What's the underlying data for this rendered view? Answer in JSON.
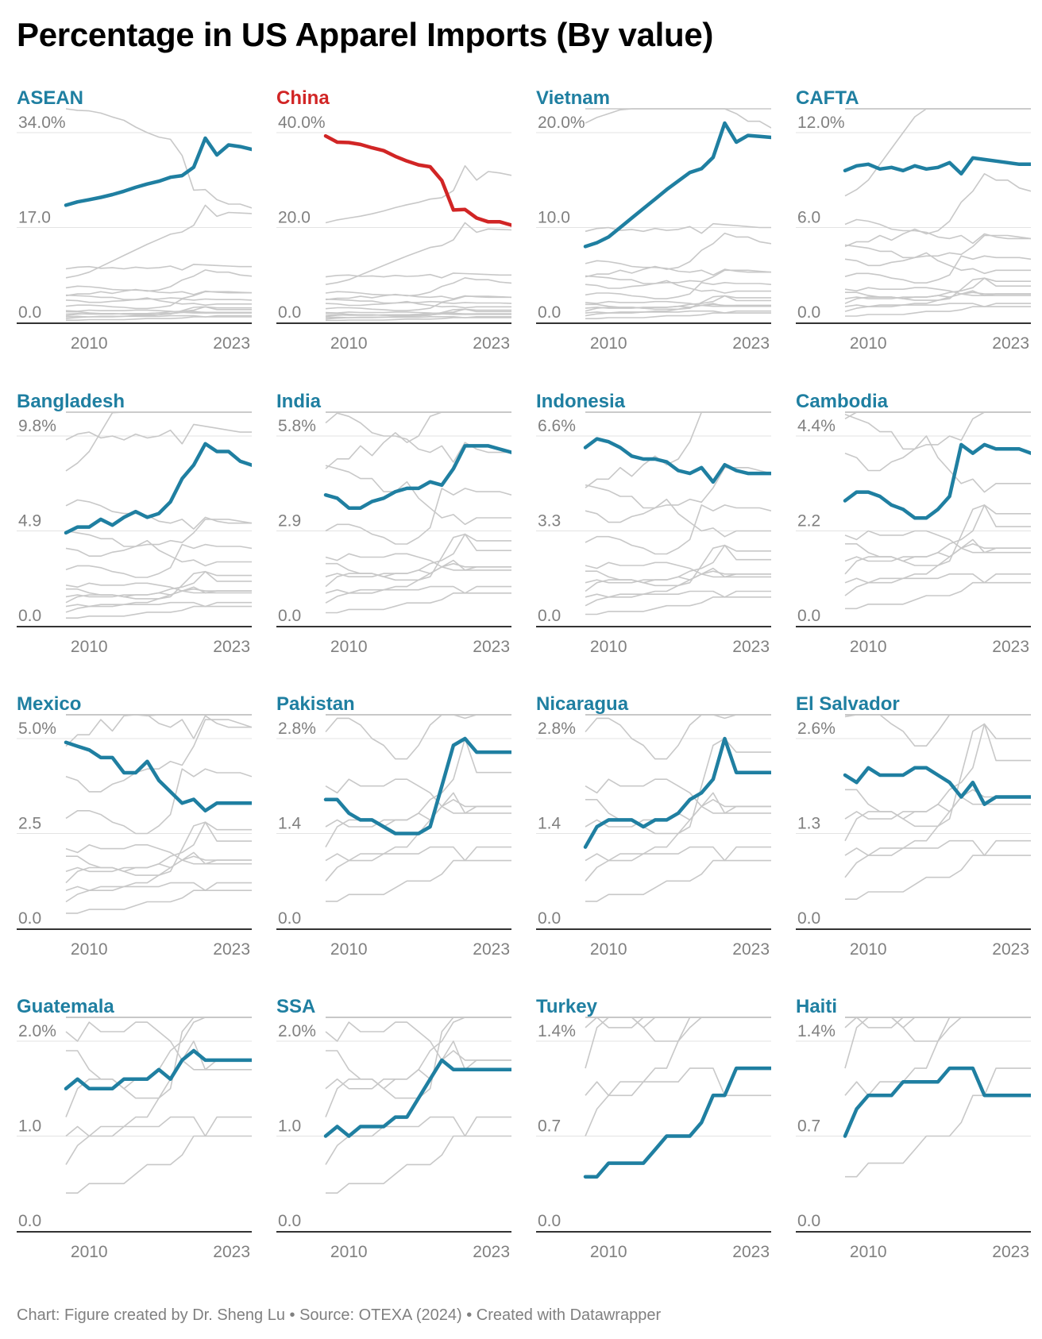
{
  "title": "Percentage in US Apparel Imports (By value)",
  "footer": {
    "chart": "Chart: Figure created by Dr. Sheng Lu",
    "sep1": " • ",
    "source": "Source: OTEXA (2024)",
    "sep2": " • ",
    "tool": "Created with Datawrapper"
  },
  "colors": {
    "highlight": "#1f7fa1",
    "china": "#d12525",
    "context": "#c8c8c8",
    "gridline": "#e3e3e3",
    "baseline": "#333333",
    "axis_text": "#808080"
  },
  "chart_data": [
    {
      "type": "line",
      "name": "ASEAN",
      "color": "#1f7fa1",
      "y_ticks": [
        "0.0",
        "17.0",
        "34.0%"
      ],
      "ylim": [
        0,
        34
      ],
      "x_ticks": [
        "2010",
        "2023"
      ],
      "x": [
        2008,
        2009,
        2010,
        2011,
        2012,
        2013,
        2014,
        2015,
        2016,
        2017,
        2018,
        2019,
        2020,
        2021,
        2022,
        2023,
        2024
      ],
      "values": [
        21.0,
        21.6,
        22.0,
        22.4,
        22.9,
        23.5,
        24.2,
        24.8,
        25.3,
        26.0,
        26.3,
        27.8,
        33.0,
        30.0,
        31.8,
        31.5,
        31.0
      ]
    },
    {
      "type": "line",
      "name": "China",
      "color": "#d12525",
      "y_ticks": [
        "0.0",
        "20.0",
        "40.0%"
      ],
      "ylim": [
        0,
        40
      ],
      "x_ticks": [
        "2010",
        "2023"
      ],
      "x": [
        2008,
        2009,
        2010,
        2011,
        2012,
        2013,
        2014,
        2015,
        2016,
        2017,
        2018,
        2019,
        2020,
        2021,
        2022,
        2023,
        2024
      ],
      "values": [
        39.3,
        38.0,
        37.9,
        37.5,
        36.8,
        36.2,
        35.0,
        34.0,
        33.2,
        32.8,
        29.9,
        23.7,
        23.8,
        22.0,
        21.2,
        21.2,
        20.5
      ]
    },
    {
      "type": "line",
      "name": "Vietnam",
      "color": "#1f7fa1",
      "y_ticks": [
        "0.0",
        "10.0",
        "20.0%"
      ],
      "ylim": [
        0,
        20
      ],
      "x_ticks": [
        "2010",
        "2023"
      ],
      "x": [
        2008,
        2009,
        2010,
        2011,
        2012,
        2013,
        2014,
        2015,
        2016,
        2017,
        2018,
        2019,
        2020,
        2021,
        2022,
        2023,
        2024
      ],
      "values": [
        8.0,
        8.4,
        9.0,
        10.0,
        11.0,
        12.0,
        13.0,
        14.0,
        14.9,
        15.8,
        16.2,
        17.4,
        21.0,
        19.0,
        19.7,
        19.6,
        19.5
      ]
    },
    {
      "type": "line",
      "name": "CAFTA",
      "color": "#1f7fa1",
      "y_ticks": [
        "0.0",
        "6.0",
        "12.0%"
      ],
      "ylim": [
        0,
        12
      ],
      "x_ticks": [
        "2010",
        "2023"
      ],
      "x": [
        2008,
        2009,
        2010,
        2011,
        2012,
        2013,
        2014,
        2015,
        2016,
        2017,
        2018,
        2019,
        2020,
        2021,
        2022,
        2023,
        2024
      ],
      "values": [
        9.6,
        9.9,
        10.0,
        9.7,
        9.8,
        9.6,
        9.9,
        9.7,
        9.8,
        10.1,
        9.4,
        10.4,
        10.3,
        10.2,
        10.1,
        10.0,
        10.0
      ]
    },
    {
      "type": "line",
      "name": "Bangladesh",
      "color": "#1f7fa1",
      "y_ticks": [
        "0.0",
        "4.9",
        "9.8%"
      ],
      "ylim": [
        0,
        9.8
      ],
      "x_ticks": [
        "2010",
        "2023"
      ],
      "x": [
        2008,
        2009,
        2010,
        2011,
        2012,
        2013,
        2014,
        2015,
        2016,
        2017,
        2018,
        2019,
        2020,
        2021,
        2022,
        2023,
        2024
      ],
      "values": [
        4.8,
        5.1,
        5.1,
        5.5,
        5.2,
        5.6,
        5.9,
        5.6,
        5.8,
        6.4,
        7.6,
        8.3,
        9.4,
        9.0,
        9.0,
        8.5,
        8.3
      ]
    },
    {
      "type": "line",
      "name": "India",
      "color": "#1f7fa1",
      "y_ticks": [
        "0.0",
        "2.9",
        "5.8%"
      ],
      "ylim": [
        0,
        5.8
      ],
      "x_ticks": [
        "2010",
        "2023"
      ],
      "x": [
        2008,
        2009,
        2010,
        2011,
        2012,
        2013,
        2014,
        2015,
        2016,
        2017,
        2018,
        2019,
        2020,
        2021,
        2022,
        2023,
        2024
      ],
      "values": [
        4.0,
        3.9,
        3.6,
        3.6,
        3.8,
        3.9,
        4.1,
        4.2,
        4.2,
        4.4,
        4.3,
        4.8,
        5.5,
        5.5,
        5.5,
        5.4,
        5.3
      ]
    },
    {
      "type": "line",
      "name": "Indonesia",
      "color": "#1f7fa1",
      "y_ticks": [
        "0.0",
        "3.3",
        "6.6%"
      ],
      "ylim": [
        0,
        6.6
      ],
      "x_ticks": [
        "2010",
        "2023"
      ],
      "x": [
        2008,
        2009,
        2010,
        2011,
        2012,
        2013,
        2014,
        2015,
        2016,
        2017,
        2018,
        2019,
        2020,
        2021,
        2022,
        2023,
        2024
      ],
      "values": [
        6.2,
        6.5,
        6.4,
        6.2,
        5.9,
        5.8,
        5.8,
        5.7,
        5.4,
        5.3,
        5.5,
        5.0,
        5.6,
        5.4,
        5.3,
        5.3,
        5.3
      ]
    },
    {
      "type": "line",
      "name": "Cambodia",
      "color": "#1f7fa1",
      "y_ticks": [
        "0.0",
        "2.2",
        "4.4%"
      ],
      "ylim": [
        0,
        4.4
      ],
      "x_ticks": [
        "2010",
        "2023"
      ],
      "x": [
        2008,
        2009,
        2010,
        2011,
        2012,
        2013,
        2014,
        2015,
        2016,
        2017,
        2018,
        2019,
        2020,
        2021,
        2022,
        2023,
        2024
      ],
      "values": [
        2.9,
        3.1,
        3.1,
        3.0,
        2.8,
        2.7,
        2.5,
        2.5,
        2.7,
        3.0,
        4.2,
        4.0,
        4.2,
        4.1,
        4.1,
        4.1,
        4.0
      ]
    },
    {
      "type": "line",
      "name": "Mexico",
      "color": "#1f7fa1",
      "y_ticks": [
        "0.0",
        "2.5",
        "5.0%"
      ],
      "ylim": [
        0,
        5.0
      ],
      "x_ticks": [
        "2010",
        "2023"
      ],
      "x": [
        2008,
        2009,
        2010,
        2011,
        2012,
        2013,
        2014,
        2015,
        2016,
        2017,
        2018,
        2019,
        2020,
        2021,
        2022,
        2023,
        2024
      ],
      "values": [
        4.9,
        4.8,
        4.7,
        4.5,
        4.5,
        4.1,
        4.1,
        4.4,
        3.9,
        3.6,
        3.3,
        3.4,
        3.1,
        3.3,
        3.3,
        3.3,
        3.3
      ]
    },
    {
      "type": "line",
      "name": "Pakistan",
      "color": "#1f7fa1",
      "y_ticks": [
        "0.0",
        "1.4",
        "2.8%"
      ],
      "ylim": [
        0,
        2.8
      ],
      "x_ticks": [
        "2010",
        "2023"
      ],
      "x": [
        2008,
        2009,
        2010,
        2011,
        2012,
        2013,
        2014,
        2015,
        2016,
        2017,
        2018,
        2019,
        2020,
        2021,
        2022,
        2023,
        2024
      ],
      "values": [
        1.9,
        1.9,
        1.7,
        1.6,
        1.6,
        1.5,
        1.4,
        1.4,
        1.4,
        1.5,
        2.1,
        2.7,
        2.8,
        2.6,
        2.6,
        2.6,
        2.6
      ]
    },
    {
      "type": "line",
      "name": "Nicaragua",
      "color": "#1f7fa1",
      "y_ticks": [
        "0.0",
        "1.4",
        "2.8%"
      ],
      "ylim": [
        0,
        2.8
      ],
      "x_ticks": [
        "2010",
        "2023"
      ],
      "x": [
        2008,
        2009,
        2010,
        2011,
        2012,
        2013,
        2014,
        2015,
        2016,
        2017,
        2018,
        2019,
        2020,
        2021,
        2022,
        2023,
        2024
      ],
      "values": [
        1.2,
        1.5,
        1.6,
        1.6,
        1.6,
        1.5,
        1.6,
        1.6,
        1.7,
        1.9,
        2.0,
        2.2,
        2.8,
        2.3,
        2.3,
        2.3,
        2.3
      ]
    },
    {
      "type": "line",
      "name": "El Salvador",
      "color": "#1f7fa1",
      "y_ticks": [
        "0.0",
        "1.3",
        "2.6%"
      ],
      "ylim": [
        0,
        2.6
      ],
      "x_ticks": [
        "2010",
        "2023"
      ],
      "x": [
        2008,
        2009,
        2010,
        2011,
        2012,
        2013,
        2014,
        2015,
        2016,
        2017,
        2018,
        2019,
        2020,
        2021,
        2022,
        2023,
        2024
      ],
      "values": [
        2.1,
        2.0,
        2.2,
        2.1,
        2.1,
        2.1,
        2.2,
        2.2,
        2.1,
        2.0,
        1.8,
        2.0,
        1.7,
        1.8,
        1.8,
        1.8,
        1.8
      ]
    },
    {
      "type": "line",
      "name": "Guatemala",
      "color": "#1f7fa1",
      "y_ticks": [
        "0.0",
        "1.0",
        "2.0%"
      ],
      "ylim": [
        0,
        2.0
      ],
      "x_ticks": [
        "2010",
        "2023"
      ],
      "x": [
        2008,
        2009,
        2010,
        2011,
        2012,
        2013,
        2014,
        2015,
        2016,
        2017,
        2018,
        2019,
        2020,
        2021,
        2022,
        2023,
        2024
      ],
      "values": [
        1.5,
        1.6,
        1.5,
        1.5,
        1.5,
        1.6,
        1.6,
        1.6,
        1.7,
        1.6,
        1.8,
        1.9,
        1.8,
        1.8,
        1.8,
        1.8,
        1.8
      ]
    },
    {
      "type": "line",
      "name": "SSA",
      "color": "#1f7fa1",
      "y_ticks": [
        "0.0",
        "1.0",
        "2.0%"
      ],
      "ylim": [
        0,
        2.0
      ],
      "x_ticks": [
        "2010",
        "2023"
      ],
      "x": [
        2008,
        2009,
        2010,
        2011,
        2012,
        2013,
        2014,
        2015,
        2016,
        2017,
        2018,
        2019,
        2020,
        2021,
        2022,
        2023,
        2024
      ],
      "values": [
        1.0,
        1.1,
        1.0,
        1.1,
        1.1,
        1.1,
        1.2,
        1.2,
        1.4,
        1.6,
        1.8,
        1.7,
        1.7,
        1.7,
        1.7,
        1.7,
        1.7
      ]
    },
    {
      "type": "line",
      "name": "Turkey",
      "color": "#1f7fa1",
      "y_ticks": [
        "0.0",
        "0.7",
        "1.4%"
      ],
      "ylim": [
        0,
        1.4
      ],
      "x_ticks": [
        "2010",
        "2023"
      ],
      "x": [
        2008,
        2009,
        2010,
        2011,
        2012,
        2013,
        2014,
        2015,
        2016,
        2017,
        2018,
        2019,
        2020,
        2021,
        2022,
        2023,
        2024
      ],
      "values": [
        0.4,
        0.4,
        0.5,
        0.5,
        0.5,
        0.5,
        0.6,
        0.7,
        0.7,
        0.7,
        0.8,
        1.0,
        1.0,
        1.2,
        1.2,
        1.2,
        1.2
      ]
    },
    {
      "type": "line",
      "name": "Haiti",
      "color": "#1f7fa1",
      "y_ticks": [
        "0.0",
        "0.7",
        "1.4%"
      ],
      "ylim": [
        0,
        1.4
      ],
      "x_ticks": [
        "2010",
        "2023"
      ],
      "x": [
        2008,
        2009,
        2010,
        2011,
        2012,
        2013,
        2014,
        2015,
        2016,
        2017,
        2018,
        2019,
        2020,
        2021,
        2022,
        2023,
        2024
      ],
      "values": [
        0.7,
        0.9,
        1.0,
        1.0,
        1.0,
        1.1,
        1.1,
        1.1,
        1.1,
        1.2,
        1.2,
        1.2,
        1.0,
        1.0,
        1.0,
        1.0,
        1.0
      ]
    }
  ]
}
